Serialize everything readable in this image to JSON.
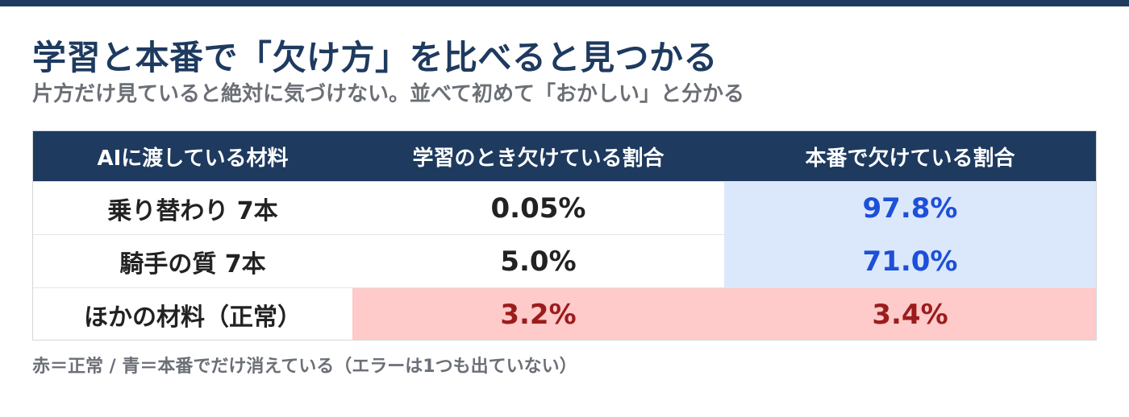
{
  "title": "学習と本番で「欠け方」を比べると見つかる",
  "subtitle": "片方だけ見ていると絶対に気づけない。並べて初めて「おかしい」と分かる",
  "table": {
    "headers": [
      "AIに渡している材料",
      "学習のとき欠けている割合",
      "本番で欠けている割合"
    ],
    "rows": [
      {
        "label": "乗り替わり 7本",
        "train": "0.05%",
        "prod": "97.8%"
      },
      {
        "label": "騎手の質 7本",
        "train": "5.0%",
        "prod": "71.0%"
      },
      {
        "label": "ほかの材料（正常）",
        "train": "3.2%",
        "prod": "3.4%"
      }
    ]
  },
  "footnote": "赤＝正常 / 青＝本番でだけ消えている（エラーは1つも出ていない）",
  "colors": {
    "header_bg": "#1e3a5f",
    "highlight_blue_bg": "#dbe8fb",
    "highlight_blue_text": "#1d4fd8",
    "highlight_red_bg": "#fecaca",
    "highlight_red_text": "#9b1c1c"
  }
}
